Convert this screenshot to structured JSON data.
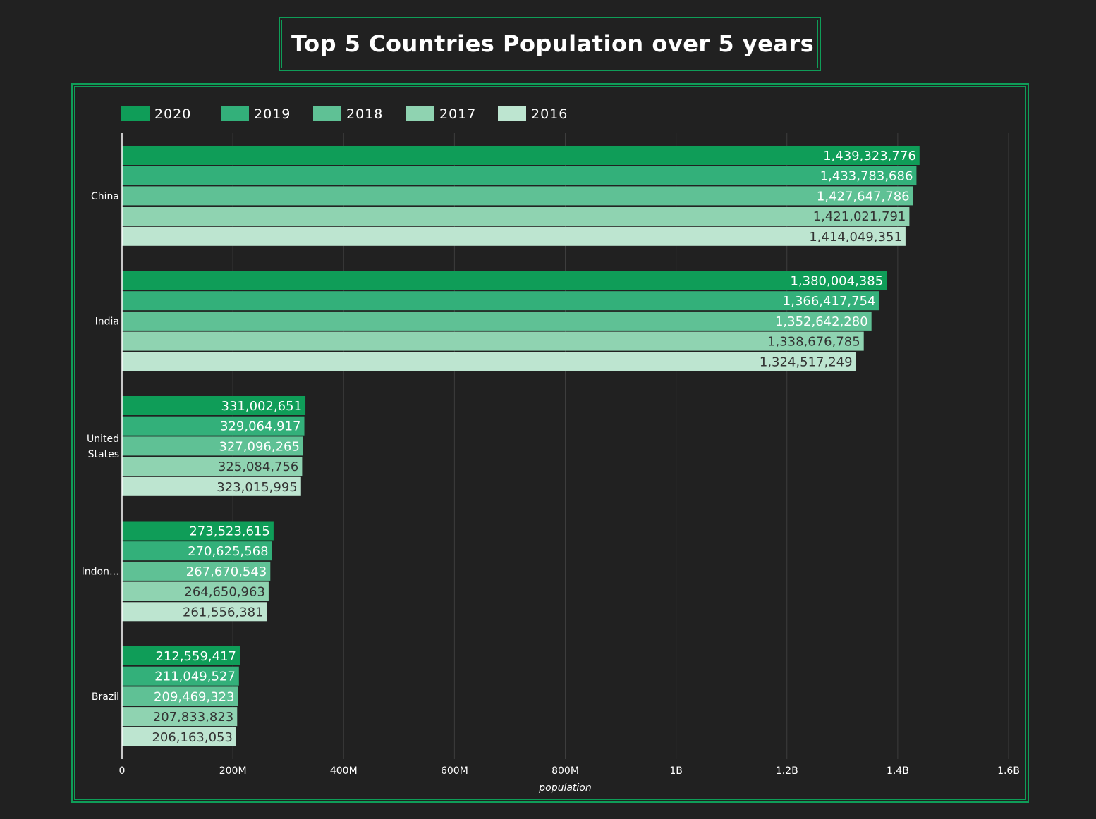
{
  "title": "Top 5 Countries Population over 5 years",
  "chart_data": {
    "type": "bar",
    "orientation": "horizontal",
    "title": "Top 5 Countries Population over 5 years",
    "xlabel": "population",
    "ylabel": "",
    "xlim": [
      0,
      1600000000
    ],
    "x_ticks": [
      {
        "value": 0,
        "label": "0"
      },
      {
        "value": 200000000,
        "label": "200M"
      },
      {
        "value": 400000000,
        "label": "400M"
      },
      {
        "value": 600000000,
        "label": "600M"
      },
      {
        "value": 800000000,
        "label": "800M"
      },
      {
        "value": 1000000000,
        "label": "1B"
      },
      {
        "value": 1200000000,
        "label": "1.2B"
      },
      {
        "value": 1400000000,
        "label": "1.4B"
      },
      {
        "value": 1600000000,
        "label": "1.6B"
      }
    ],
    "categories": [
      "China",
      "India",
      "United States",
      "Indon…",
      "Brazil"
    ],
    "category_lines": [
      [
        "China"
      ],
      [
        "India"
      ],
      [
        "United",
        "States"
      ],
      [
        "Indon…"
      ],
      [
        "Brazil"
      ]
    ],
    "grid": true,
    "legend_position": "top-left",
    "series": [
      {
        "name": "2020",
        "color": "#0f9d58",
        "label_color": "#ffffff",
        "values": [
          1439323776,
          1380004385,
          331002651,
          273523615,
          212559417
        ],
        "labels": [
          "1,439,323,776",
          "1,380,004,385",
          "331,002,651",
          "273,523,615",
          "212,559,417"
        ]
      },
      {
        "name": "2019",
        "color": "#33b07a",
        "label_color": "#ffffff",
        "values": [
          1433783686,
          1366417754,
          329064917,
          270625568,
          211049527
        ],
        "labels": [
          "1,433,783,686",
          "1,366,417,754",
          "329,064,917",
          "270,625,568",
          "211,049,527"
        ]
      },
      {
        "name": "2018",
        "color": "#5fc195",
        "label_color": "#ffffff",
        "values": [
          1427647786,
          1352642280,
          327096265,
          267670543,
          209469323
        ],
        "labels": [
          "1,427,647,786",
          "1,352,642,280",
          "327,096,265",
          "267,670,543",
          "209,469,323"
        ]
      },
      {
        "name": "2017",
        "color": "#8fd3b1",
        "label_color": "#333333",
        "values": [
          1421021791,
          1338676785,
          325084756,
          264650963,
          207833823
        ],
        "labels": [
          "1,421,021,791",
          "1,338,676,785",
          "325,084,756",
          "264,650,963",
          "207,833,823"
        ]
      },
      {
        "name": "2016",
        "color": "#bde5d0",
        "label_color": "#333333",
        "values": [
          1414049351,
          1324517249,
          323015995,
          261556381,
          206163053
        ],
        "labels": [
          "1,414,049,351",
          "1,324,517,249",
          "323,015,995",
          "261,556,381",
          "206,163,053"
        ]
      }
    ]
  },
  "colors": {
    "background": "#212121",
    "frame": "#0f9d58",
    "grid": "#3d3d3d"
  }
}
